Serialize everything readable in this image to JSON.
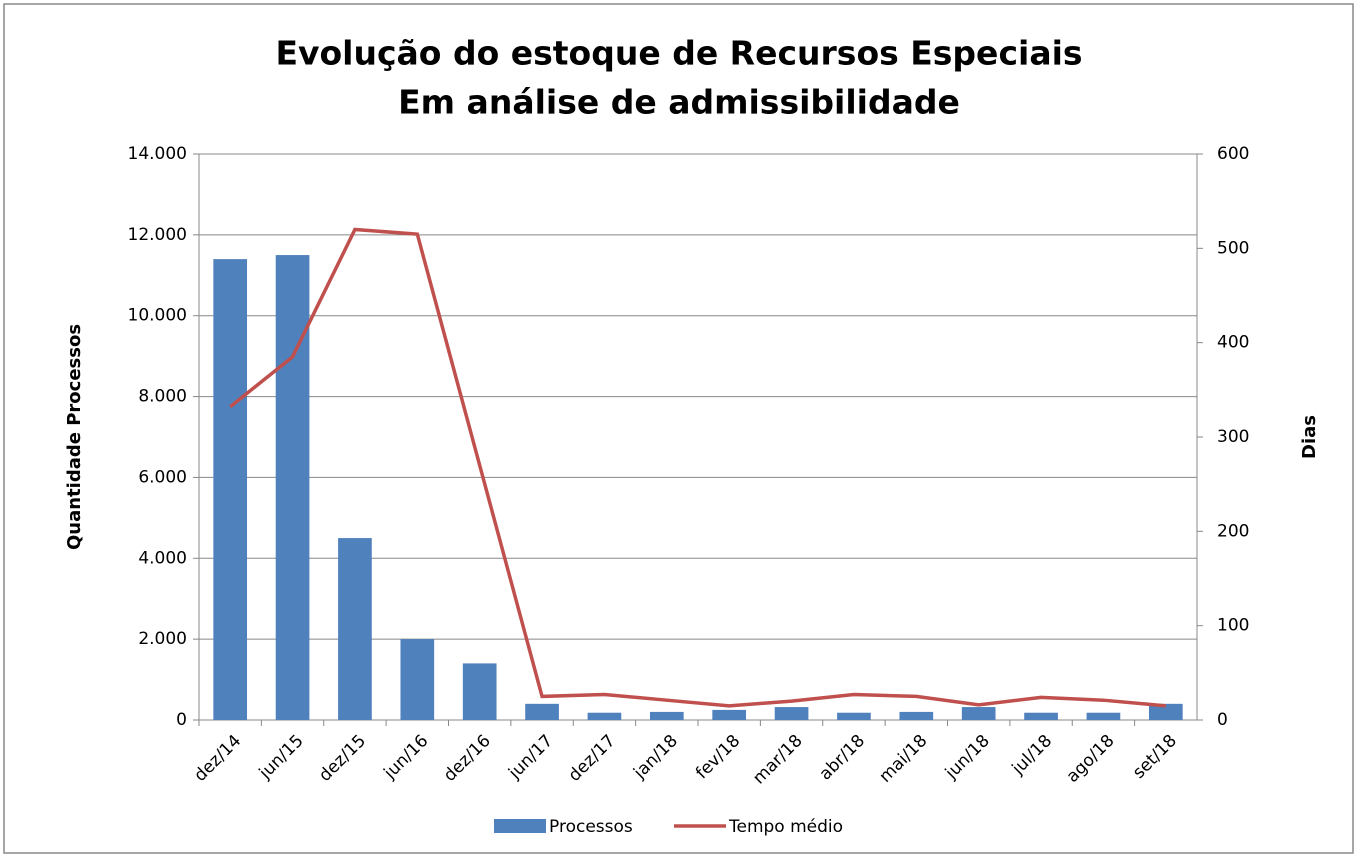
{
  "chart_data": {
    "type": "bar_line",
    "title": "Evolução do estoque de Recursos Especiais",
    "subtitle": "Em análise de admissibilidade",
    "y_label": "Quantidade Processos",
    "y2_label": "Dias",
    "categories": [
      "dez/14",
      "jun/15",
      "dez/15",
      "jun/16",
      "dez/16",
      "jun/17",
      "dez/17",
      "jan/18",
      "fev/18",
      "mar/18",
      "abr/18",
      "mai/18",
      "jun/18",
      "jul/18",
      "ago/18",
      "set/18"
    ],
    "series": [
      {
        "name": "Processos",
        "type": "bar",
        "color": "#4f81bd",
        "values": [
          11400,
          11500,
          4500,
          2000,
          1400,
          400,
          180,
          200,
          250,
          320,
          180,
          200,
          320,
          180,
          180,
          400
        ]
      },
      {
        "name": "Tempo médio",
        "type": "line",
        "axis": "y2",
        "color": "#c0504d",
        "values": [
          332,
          385,
          520,
          515,
          270,
          25,
          27,
          21,
          15,
          20,
          27,
          25,
          16,
          24,
          21,
          15
        ]
      }
    ],
    "ylim": [
      0,
      14000
    ],
    "yticks": [
      0,
      {
        "value": 2000,
        "label": "2.000"
      },
      {
        "value": 4000,
        "label": "4.000"
      },
      {
        "value": 6000,
        "label": "6.000"
      },
      {
        "value": 8000,
        "label": "8.000"
      },
      {
        "value": 10000,
        "label": "10.000"
      },
      {
        "value": 12000,
        "label": "12.000"
      },
      {
        "value": 14000,
        "label": "14.000"
      }
    ],
    "y2lim": [
      0,
      600
    ],
    "y2ticks": [
      0,
      100,
      200,
      300,
      400,
      500,
      600
    ],
    "grid": true,
    "legend": "bottom"
  }
}
